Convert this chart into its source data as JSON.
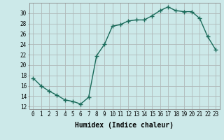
{
  "x": [
    0,
    1,
    2,
    3,
    4,
    5,
    6,
    7,
    8,
    9,
    10,
    11,
    12,
    13,
    14,
    15,
    16,
    17,
    18,
    19,
    20,
    21,
    22,
    23
  ],
  "y": [
    17.5,
    16.0,
    15.0,
    14.2,
    13.3,
    13.0,
    12.5,
    13.8,
    21.8,
    24.0,
    27.5,
    27.8,
    28.5,
    28.7,
    28.7,
    29.5,
    30.5,
    31.2,
    30.5,
    30.3,
    30.3,
    29.0,
    25.5,
    23.0
  ],
  "line_color": "#1a6b5a",
  "bg_color": "#cce9e9",
  "grid_color": "#b0b8b8",
  "xlabel": "Humidex (Indice chaleur)",
  "xlim": [
    -0.5,
    23.5
  ],
  "ylim": [
    11.5,
    32.0
  ],
  "yticks": [
    12,
    14,
    16,
    18,
    20,
    22,
    24,
    26,
    28,
    30
  ],
  "xticks": [
    0,
    1,
    2,
    3,
    4,
    5,
    6,
    7,
    8,
    9,
    10,
    11,
    12,
    13,
    14,
    15,
    16,
    17,
    18,
    19,
    20,
    21,
    22,
    23
  ],
  "marker": "+",
  "markersize": 4,
  "linewidth": 1.0,
  "xlabel_fontsize": 7,
  "tick_fontsize": 5.5
}
